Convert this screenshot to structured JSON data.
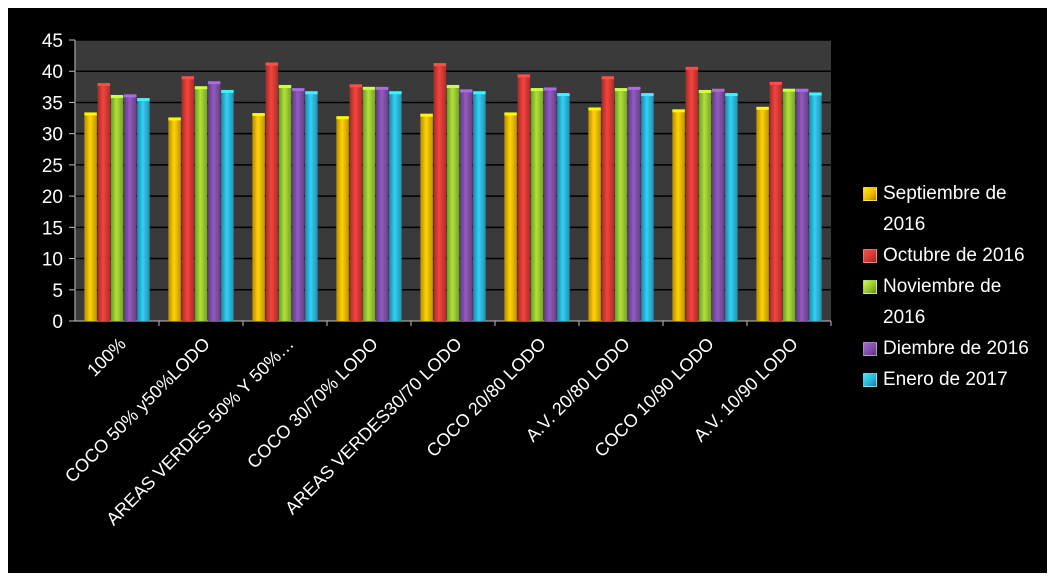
{
  "chart_data": {
    "type": "bar",
    "categories": [
      "100%",
      "COCO 50% y50%LODO",
      "AREAS VERDES 50% Y 50%…",
      "COCO 30/70% LODO",
      "AREAS VERDES30/70 LODO",
      "COCO 20/80 LODO",
      "A.V. 20/80 LODO",
      "COCO 10/90 LODO",
      "A.V. 10/90 LODO"
    ],
    "series": [
      {
        "name": "Septiembre de 2016",
        "color": "#f2b800",
        "values": [
          33.0,
          32.2,
          32.9,
          32.4,
          32.8,
          33.0,
          33.8,
          33.5,
          33.9
        ]
      },
      {
        "name": "Octubre de 2016",
        "color": "#d63a35",
        "values": [
          37.7,
          38.8,
          41.0,
          37.5,
          40.9,
          39.1,
          38.8,
          40.3,
          37.9
        ]
      },
      {
        "name": "Noviembre de 2016",
        "color": "#97c531",
        "values": [
          35.8,
          37.2,
          37.4,
          37.1,
          37.4,
          36.9,
          36.9,
          36.6,
          36.8
        ]
      },
      {
        "name": "Diembre de 2016",
        "color": "#7f4fa8",
        "values": [
          35.9,
          38.0,
          36.9,
          37.1,
          36.7,
          37.0,
          37.1,
          36.8,
          36.8
        ]
      },
      {
        "name": "Enero de 2017",
        "color": "#2bb5d8",
        "values": [
          35.3,
          36.6,
          36.4,
          36.4,
          36.4,
          36.1,
          36.1,
          36.1,
          36.2
        ]
      }
    ],
    "title": "",
    "xlabel": "",
    "ylabel": "",
    "ylim": [
      0,
      45
    ],
    "yticks": [
      "0",
      "5",
      "10",
      "15",
      "20",
      "25",
      "30",
      "35",
      "40",
      "45"
    ],
    "grid": true,
    "legend_position": "right",
    "colors": {
      "background": "#000000",
      "plot_area": "#3a3a3a",
      "gridline": "#000000",
      "text": "#ffffff"
    }
  }
}
